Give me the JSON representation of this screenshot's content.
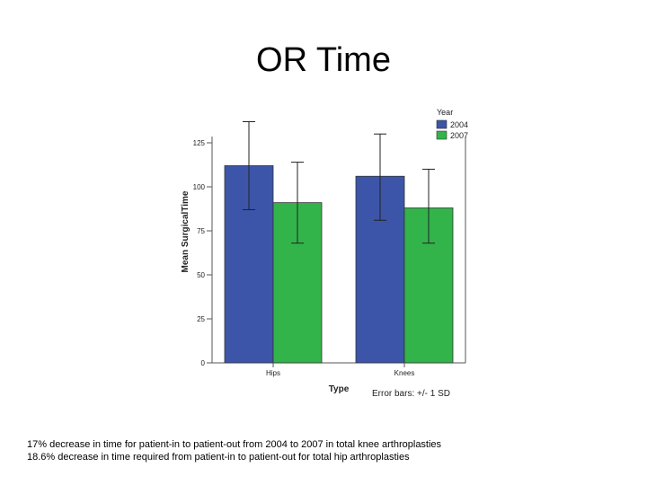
{
  "slide": {
    "title": "OR Time",
    "captions": [
      "17% decrease in time for patient-in to patient-out from 2004 to 2007 in total knee arthroplasties",
      "18.6% decrease in time required from patient-in to patient-out for total hip arthroplasties"
    ]
  },
  "chart_data": {
    "type": "bar",
    "title": "",
    "xlabel": "Type",
    "ylabel": "Mean SurgicalTime",
    "categories": [
      "Hips",
      "Knees"
    ],
    "series": [
      {
        "name": "2004",
        "color": "#3c55a8",
        "values": [
          112,
          106
        ],
        "error_high": [
          137,
          130
        ],
        "error_low": [
          87,
          81
        ]
      },
      {
        "name": "2007",
        "color": "#33b44a",
        "values": [
          91,
          88
        ],
        "error_high": [
          114,
          110
        ],
        "error_low": [
          68,
          68
        ]
      }
    ],
    "ylim": [
      0,
      137
    ],
    "yticks": [
      0,
      25,
      50,
      75,
      100,
      125
    ],
    "yticklabels": [
      "0",
      "25",
      "50",
      "75",
      "100",
      "125"
    ],
    "legend": {
      "title": "Year",
      "placement": "top-right"
    },
    "note": "Error bars: +/- 1 SD",
    "grid": false
  }
}
